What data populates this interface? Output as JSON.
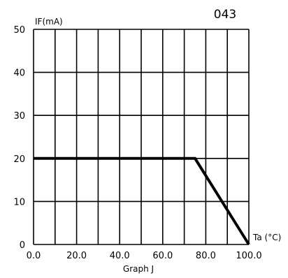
{
  "figure_id_label": "043",
  "chart_data": {
    "type": "line",
    "title": "",
    "caption": "Graph J",
    "ylabel": "IF(mA)",
    "xlabel": "Ta (°C)",
    "xlim": [
      0,
      100
    ],
    "ylim": [
      0,
      50
    ],
    "x_ticks": [
      0,
      10,
      20,
      30,
      40,
      50,
      60,
      70,
      80,
      90,
      100
    ],
    "x_tick_labels": [
      "0.0",
      "",
      "20.0",
      "",
      "40.0",
      "",
      "60.0",
      "",
      "80.0",
      "",
      "100.0"
    ],
    "y_ticks": [
      0,
      10,
      20,
      30,
      40,
      50
    ],
    "y_tick_labels": [
      "0",
      "10",
      "20",
      "30",
      "40",
      "50"
    ],
    "grid": true,
    "series": [
      {
        "x": [
          0,
          75,
          100
        ],
        "y": [
          20,
          20,
          0
        ]
      }
    ]
  }
}
